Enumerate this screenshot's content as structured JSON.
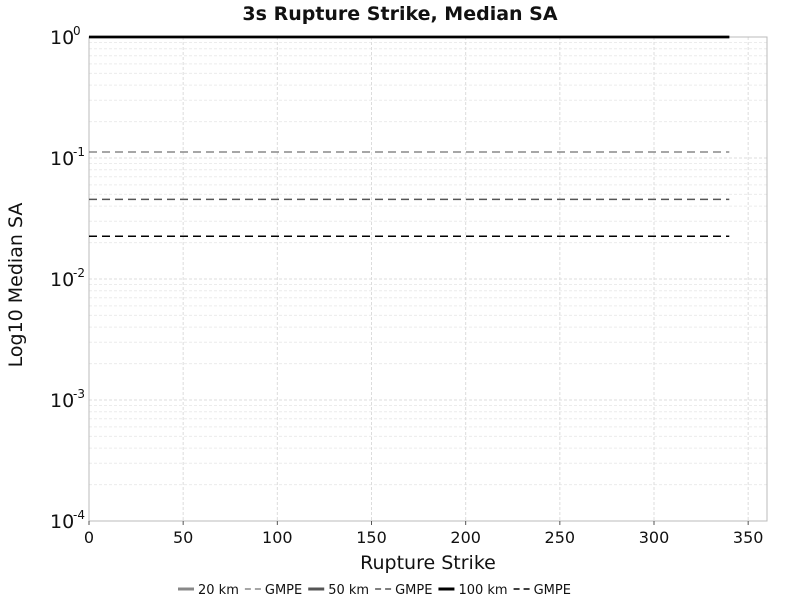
{
  "chart_data": {
    "type": "line",
    "title": "3s Rupture Strike, Median SA",
    "xlabel": "Rupture Strike",
    "ylabel": "Log10 Median SA",
    "xlim": [
      0,
      360
    ],
    "ylim": [
      0.0001,
      1
    ],
    "yscale": "log",
    "grid": true,
    "legend_position": "bottom",
    "x_ticks": [
      "0",
      "50",
      "100",
      "150",
      "200",
      "250",
      "300",
      "350"
    ],
    "y_ticks": [
      {
        "base": "10",
        "exp": "0"
      },
      {
        "base": "10",
        "exp": "-1"
      },
      {
        "base": "10",
        "exp": "-2"
      },
      {
        "base": "10",
        "exp": "-3"
      },
      {
        "base": "10",
        "exp": "-4"
      }
    ],
    "x": [
      0,
      20,
      40,
      60,
      80,
      100,
      120,
      140,
      160,
      180,
      200,
      220,
      240,
      260,
      280,
      300,
      320,
      340
    ],
    "series": [
      {
        "name": "20 km",
        "style": "solid",
        "color": "#888888",
        "values": [
          1,
          1,
          1,
          1,
          1,
          1,
          1,
          1,
          1,
          1,
          1,
          1,
          1,
          1,
          1,
          1,
          1,
          1
        ]
      },
      {
        "name": "GMPE",
        "style": "dashed",
        "color": "#888888",
        "values": [
          0.112,
          0.112,
          0.112,
          0.112,
          0.112,
          0.112,
          0.112,
          0.112,
          0.112,
          0.112,
          0.112,
          0.112,
          0.112,
          0.112,
          0.112,
          0.112,
          0.112,
          0.112
        ]
      },
      {
        "name": "50 km",
        "style": "solid",
        "color": "#555555",
        "values": [
          1,
          1,
          1,
          1,
          1,
          1,
          1,
          1,
          1,
          1,
          1,
          1,
          1,
          1,
          1,
          1,
          1,
          1
        ]
      },
      {
        "name": "GMPE",
        "style": "dashed",
        "color": "#555555",
        "values": [
          0.0455,
          0.0455,
          0.0455,
          0.0455,
          0.0455,
          0.0455,
          0.0455,
          0.0455,
          0.0455,
          0.0455,
          0.0455,
          0.0455,
          0.0455,
          0.0455,
          0.0455,
          0.0455,
          0.0455,
          0.0455
        ]
      },
      {
        "name": "100 km",
        "style": "solid",
        "color": "#000000",
        "values": [
          1,
          1,
          1,
          1,
          1,
          1,
          1,
          1,
          1,
          1,
          1,
          1,
          1,
          1,
          1,
          1,
          1,
          1
        ]
      },
      {
        "name": "GMPE",
        "style": "dashed",
        "color": "#000000",
        "values": [
          0.0226,
          0.0226,
          0.0226,
          0.0226,
          0.0226,
          0.0226,
          0.0226,
          0.0226,
          0.0226,
          0.0226,
          0.0226,
          0.0226,
          0.0226,
          0.0226,
          0.0226,
          0.0226,
          0.0226,
          0.0226
        ]
      }
    ]
  }
}
